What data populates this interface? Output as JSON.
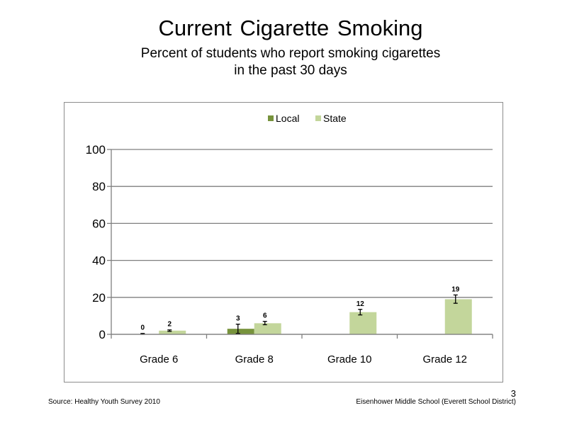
{
  "slide": {
    "title": "Current Cigarette  Smoking",
    "subtitle_line1": "Percent of students  who report smoking cigarettes",
    "subtitle_line2": "in the past 30 days",
    "footer_source": "Source: Healthy  Youth Survey 2010",
    "footer_school": "Eisenhower Middle  School (Everett School District)",
    "slide_number": "3"
  },
  "colors": {
    "local": "#77933c",
    "state": "#c3d69b",
    "grid": "#7f7f7f",
    "frame": "#8c8c8c"
  },
  "chart_data": {
    "type": "bar",
    "categories": [
      "Grade 6",
      "Grade 8",
      "Grade 10",
      "Grade 12"
    ],
    "series": [
      {
        "name": "Local",
        "values": [
          0,
          3,
          null,
          null
        ],
        "labels": [
          "0",
          "3",
          "",
          ""
        ],
        "error_low": [
          0,
          0.5,
          null,
          null
        ],
        "error_high": [
          0.5,
          5.5,
          null,
          null
        ]
      },
      {
        "name": "State",
        "values": [
          2,
          6,
          12,
          19
        ],
        "labels": [
          "2",
          "6",
          "12",
          "19"
        ],
        "error_low": [
          1.6,
          5.2,
          10.5,
          16.8
        ],
        "error_high": [
          2.4,
          7.0,
          13.5,
          21.3
        ]
      }
    ],
    "ylim": [
      0,
      100
    ],
    "yticks": [
      "0",
      "20",
      "40",
      "60",
      "80",
      "100"
    ],
    "grid": true,
    "legend_position": "top"
  }
}
